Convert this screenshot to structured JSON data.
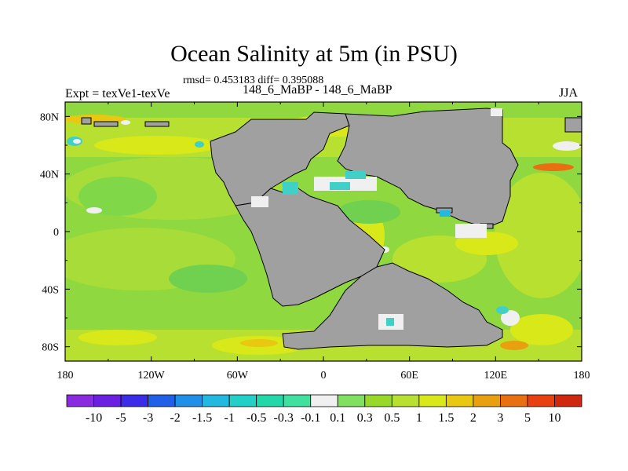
{
  "chart_data": {
    "type": "heatmap",
    "title": "Ocean Salinity at 5m (in PSU)",
    "stats_text": "rmsd= 0.453183 diff= 0.395088",
    "left_label": "Expt = texVe1-texVe",
    "center_label": "148_6_MaBP - 148_6_MaBP",
    "right_label": "JJA",
    "x_ticks": [
      "180",
      "120W",
      "60W",
      "0",
      "60E",
      "120E",
      "180"
    ],
    "y_ticks": [
      "80N",
      "40N",
      "0",
      "40S",
      "80S"
    ],
    "xlim": [
      -180,
      180
    ],
    "ylim": [
      -90,
      90
    ],
    "colorbar": {
      "labels": [
        "-10",
        "-5",
        "-3",
        "-2",
        "-1.5",
        "-1",
        "-0.5",
        "-0.3",
        "-0.1",
        "0.1",
        "0.3",
        "0.5",
        "1",
        "1.5",
        "2",
        "3",
        "5",
        "10"
      ],
      "colors": [
        "#8a2be2",
        "#6a20e0",
        "#3b2ce8",
        "#2060e8",
        "#1f8fe8",
        "#22b8e0",
        "#22d0c8",
        "#22d8a8",
        "#40e0a0",
        "#f0f0f0",
        "#80e060",
        "#98d828",
        "#b8e030",
        "#d8e818",
        "#e8c810",
        "#e8a010",
        "#e87010",
        "#e84010",
        "#d02810"
      ]
    },
    "land_color": "#a0a0a0",
    "field_summary": "mostly positive differences 0.3 to 1.5 PSU over oceans; land masked grey"
  }
}
